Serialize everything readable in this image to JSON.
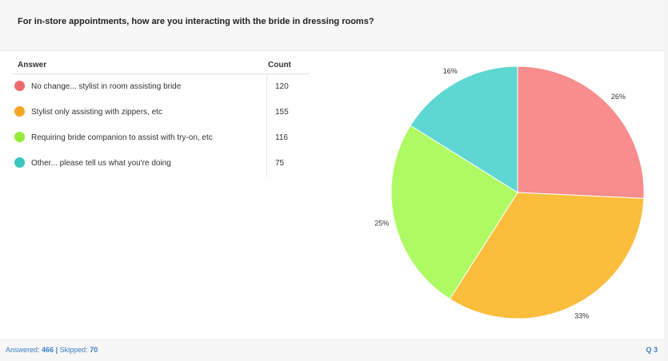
{
  "question": "For in-store appointments, how are you interacting with the bride in dressing rooms?",
  "table": {
    "answer_header": "Answer",
    "count_header": "Count"
  },
  "footer": {
    "answered_label": "Answered:",
    "answered_value": "466",
    "separator": "|",
    "skipped_label": "Skipped:",
    "skipped_value": "70",
    "question_number": "Q 3"
  },
  "chart_data": {
    "type": "pie",
    "title": "",
    "categories": [
      "No change... stylist in room assisting bride",
      "Stylist only assisting with zippers, etc",
      "Requiring bride companion to assist with try-on, etc",
      "Other... please tell us what you're doing"
    ],
    "values": [
      120,
      155,
      116,
      75
    ],
    "percent_labels": [
      "26%",
      "33%",
      "25%",
      "16%"
    ],
    "colors": [
      "#f98c8c",
      "#fbbd3c",
      "#aefa62",
      "#5ed7d2"
    ],
    "dot_colors": [
      "#ef6b6b",
      "#f5a623",
      "#96ec3a",
      "#3ac6c0"
    ],
    "legend": "left-table"
  }
}
